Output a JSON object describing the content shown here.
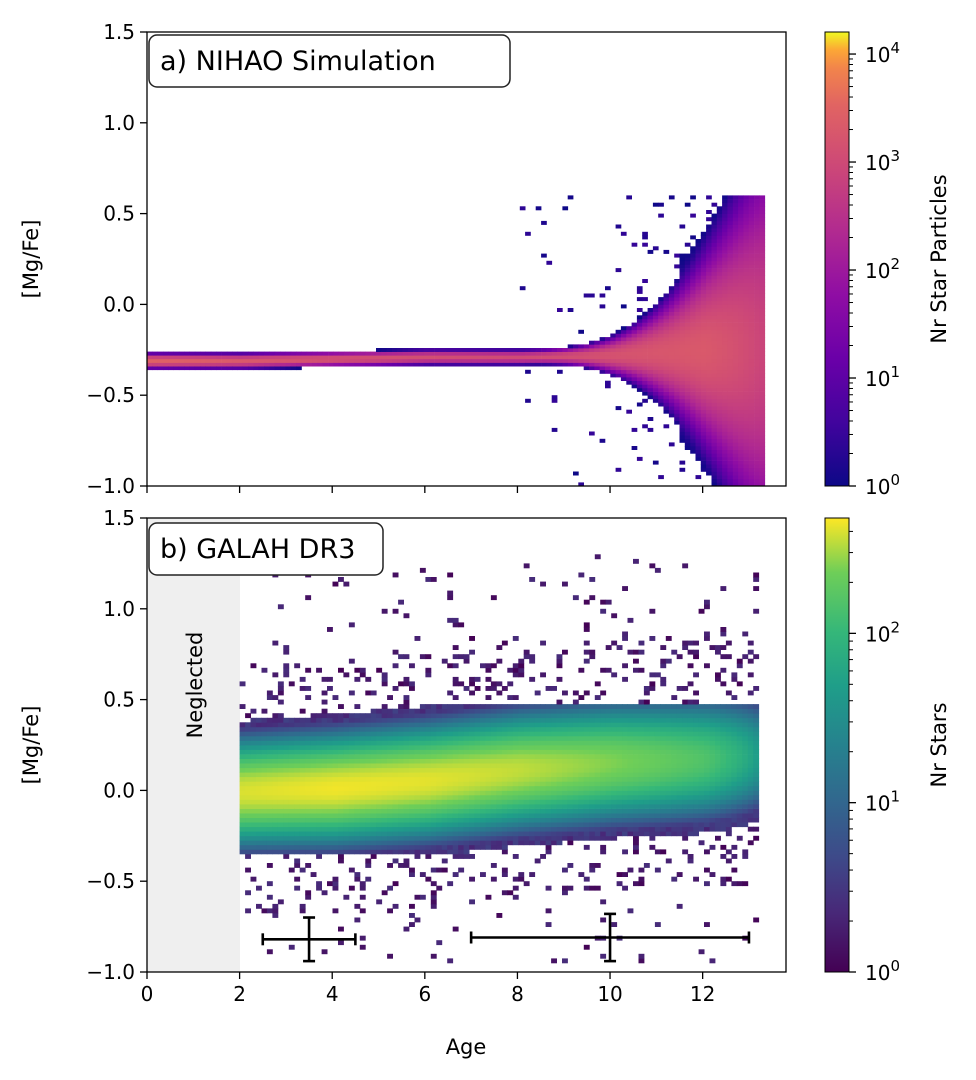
{
  "chart_data": [
    {
      "type": "heatmap",
      "title": "a) NIHAO Simulation",
      "xlabel": "",
      "ylabel": "[Mg/Fe]",
      "xlim": [
        0,
        13.8
      ],
      "ylim": [
        -1.0,
        1.5
      ],
      "yticks": [
        {
          "value": 1.5,
          "label": "1.5"
        },
        {
          "value": 1.0,
          "label": "1.0"
        },
        {
          "value": 0.5,
          "label": "0.5"
        },
        {
          "value": 0.0,
          "label": "0.0"
        },
        {
          "value": -0.5,
          "label": "−0.5"
        },
        {
          "value": -1.0,
          "label": "−1.0"
        }
      ],
      "xticks": [
        0,
        2,
        4,
        6,
        8,
        10,
        12
      ],
      "xticklabels_shown": false,
      "colormap": "plasma",
      "colorbar": {
        "label": "Nr Star Particles",
        "scale": "log",
        "min": 1,
        "max": 16000,
        "ticks": [
          {
            "value": 1,
            "base": "10",
            "exp": "0"
          },
          {
            "value": 10,
            "base": "10",
            "exp": "1"
          },
          {
            "value": 100,
            "base": "10",
            "exp": "2"
          },
          {
            "value": 1000,
            "base": "10",
            "exp": "3"
          },
          {
            "value": 10000,
            "base": "10",
            "exp": "4"
          }
        ]
      },
      "description_ridge": [
        {
          "age": 0.0,
          "mgfe": -0.32,
          "count": 3000
        },
        {
          "age": 2.0,
          "mgfe": -0.32,
          "count": 2000
        },
        {
          "age": 4.0,
          "mgfe": -0.31,
          "count": 1500
        },
        {
          "age": 6.0,
          "mgfe": -0.3,
          "count": 1200
        },
        {
          "age": 8.0,
          "mgfe": -0.3,
          "count": 1000
        },
        {
          "age": 10.0,
          "mgfe": -0.29,
          "count": 1500
        },
        {
          "age": 12.0,
          "mgfe": -0.26,
          "count": 2000
        },
        {
          "age": 13.2,
          "mgfe": -0.25,
          "count": 800
        }
      ]
    },
    {
      "type": "heatmap",
      "title": "b) GALAH DR3",
      "xlabel": "Age",
      "ylabel": "[Mg/Fe]",
      "xlim": [
        0,
        13.8
      ],
      "ylim": [
        -1.0,
        1.5
      ],
      "yticks": [
        {
          "value": 1.5,
          "label": "1.5"
        },
        {
          "value": 1.0,
          "label": "1.0"
        },
        {
          "value": 0.5,
          "label": "0.5"
        },
        {
          "value": 0.0,
          "label": "0.0"
        },
        {
          "value": -0.5,
          "label": "−0.5"
        },
        {
          "value": -1.0,
          "label": "−1.0"
        }
      ],
      "xticks": [
        0,
        2,
        4,
        6,
        8,
        10,
        12
      ],
      "xticklabels_shown": true,
      "colormap": "viridis",
      "colorbar": {
        "label": "Nr Stars",
        "scale": "log",
        "min": 1,
        "max": 480,
        "ticks": [
          {
            "value": 1,
            "base": "10",
            "exp": "0"
          },
          {
            "value": 10,
            "base": "10",
            "exp": "1"
          },
          {
            "value": 100,
            "base": "10",
            "exp": "2"
          }
        ]
      },
      "neglected_region": {
        "label": "Neglected",
        "x_range": [
          0,
          2
        ]
      },
      "description_ridge": [
        {
          "age": 2.0,
          "mgfe": -0.02,
          "count": 400
        },
        {
          "age": 4.0,
          "mgfe": 0.0,
          "count": 450
        },
        {
          "age": 6.0,
          "mgfe": 0.04,
          "count": 420
        },
        {
          "age": 8.0,
          "mgfe": 0.1,
          "count": 350
        },
        {
          "age": 10.0,
          "mgfe": 0.14,
          "count": 250
        },
        {
          "age": 12.0,
          "mgfe": 0.16,
          "count": 150
        },
        {
          "age": 13.2,
          "mgfe": 0.18,
          "count": 40
        }
      ],
      "error_bars": [
        {
          "x": 3.5,
          "y": -0.82,
          "xerr": 1.0,
          "yerr": 0.12
        },
        {
          "x": 10.0,
          "y": -0.81,
          "xerr": 3.0,
          "yerr": 0.13
        }
      ]
    }
  ]
}
